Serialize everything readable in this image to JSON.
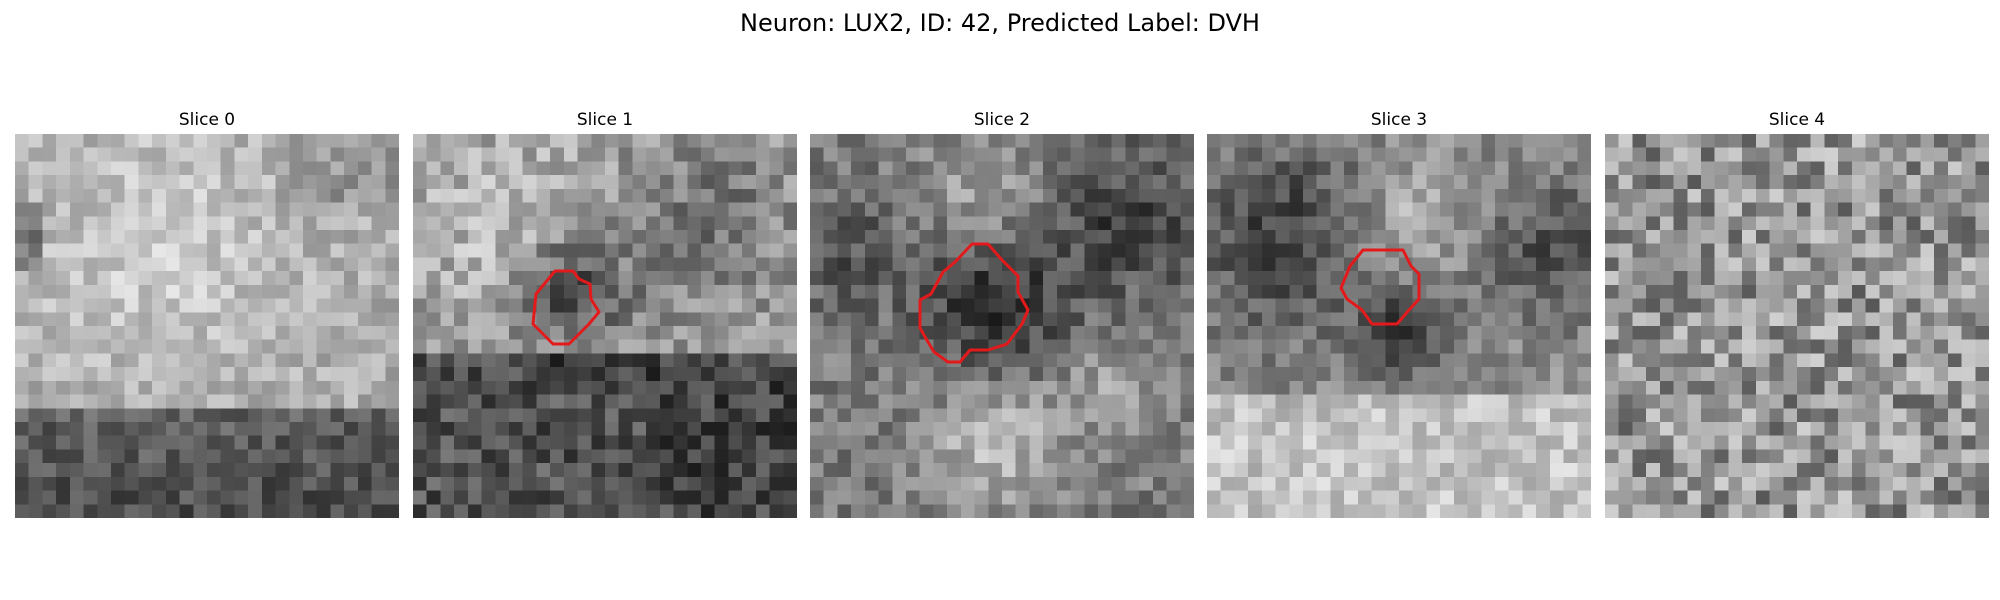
{
  "figure": {
    "suptitle": "Neuron: LUX2, ID: 42, Predicted Label: DVH"
  },
  "panels": [
    {
      "title": "Slice 0",
      "has_contour": false
    },
    {
      "title": "Slice 1",
      "has_contour": true
    },
    {
      "title": "Slice 2",
      "has_contour": true
    },
    {
      "title": "Slice 3",
      "has_contour": true
    },
    {
      "title": "Slice 4",
      "has_contour": false
    }
  ],
  "colors": {
    "background": "#ffffff",
    "contour": "#e31a1c"
  }
}
